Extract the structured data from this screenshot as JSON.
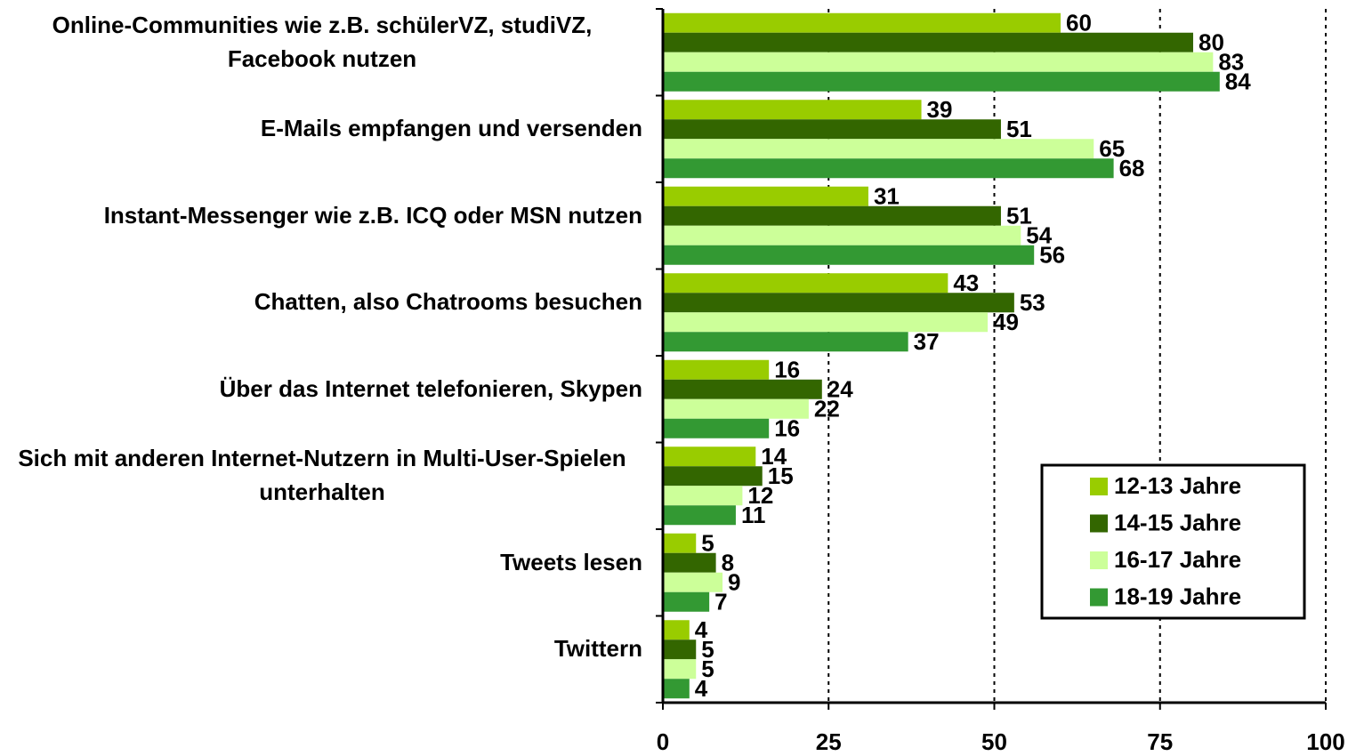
{
  "chart_data": {
    "type": "barh",
    "categories": [
      "Online-Communities wie z.B. schülerVZ, studiVZ, Facebook nutzen",
      "E-Mails empfangen und versenden",
      "Instant-Messenger wie z.B. ICQ oder MSN nutzen",
      "Chatten, also Chatrooms besuchen",
      "Über das Internet telefonieren, Skypen",
      "Sich mit anderen Internet-Nutzern in Multi-User-Spielen unterhalten",
      "Tweets lesen",
      "Twittern"
    ],
    "series": [
      {
        "name": "12-13 Jahre",
        "color": "#99cc00",
        "values": [
          60,
          39,
          31,
          43,
          16,
          14,
          5,
          4
        ]
      },
      {
        "name": "14-15 Jahre",
        "color": "#336600",
        "values": [
          80,
          51,
          51,
          53,
          24,
          15,
          8,
          5
        ]
      },
      {
        "name": "16-17 Jahre",
        "color": "#ccff99",
        "values": [
          83,
          65,
          54,
          49,
          22,
          12,
          9,
          5
        ]
      },
      {
        "name": "18-19 Jahre",
        "color": "#339933",
        "values": [
          84,
          68,
          56,
          37,
          16,
          11,
          7,
          4
        ]
      }
    ],
    "xlim": [
      0,
      100
    ],
    "xticks": [
      0,
      25,
      50,
      75,
      100
    ],
    "grid": true,
    "legend": "lower right"
  }
}
